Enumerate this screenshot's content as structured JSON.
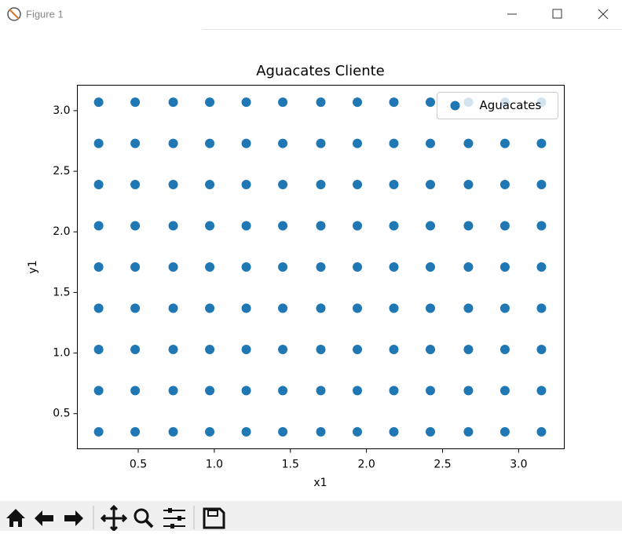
{
  "window": {
    "title": "Figure 1"
  },
  "chart_data": {
    "type": "scatter",
    "title": "Aguacates Cliente",
    "x_label": "x1",
    "y_label": "y1",
    "series": [
      {
        "name": "Aguacates",
        "color": "#1f77b4",
        "x": [
          0.24,
          0.24,
          0.24,
          0.24,
          0.24,
          0.24,
          0.24,
          0.24,
          0.24,
          0.48,
          0.48,
          0.48,
          0.48,
          0.48,
          0.48,
          0.48,
          0.48,
          0.48,
          0.73,
          0.73,
          0.73,
          0.73,
          0.73,
          0.73,
          0.73,
          0.73,
          0.73,
          0.97,
          0.97,
          0.97,
          0.97,
          0.97,
          0.97,
          0.97,
          0.97,
          0.97,
          1.21,
          1.21,
          1.21,
          1.21,
          1.21,
          1.21,
          1.21,
          1.21,
          1.21,
          1.45,
          1.45,
          1.45,
          1.45,
          1.45,
          1.45,
          1.45,
          1.45,
          1.45,
          1.7,
          1.7,
          1.7,
          1.7,
          1.7,
          1.7,
          1.7,
          1.7,
          1.7,
          1.94,
          1.94,
          1.94,
          1.94,
          1.94,
          1.94,
          1.94,
          1.94,
          1.94,
          2.18,
          2.18,
          2.18,
          2.18,
          2.18,
          2.18,
          2.18,
          2.18,
          2.18,
          2.42,
          2.42,
          2.42,
          2.42,
          2.42,
          2.42,
          2.42,
          2.42,
          2.42,
          2.67,
          2.67,
          2.67,
          2.67,
          2.67,
          2.67,
          2.67,
          2.67,
          2.67,
          2.91,
          2.91,
          2.91,
          2.91,
          2.91,
          2.91,
          2.91,
          2.91,
          2.91,
          3.15,
          3.15,
          3.15,
          3.15,
          3.15,
          3.15,
          3.15,
          3.15,
          3.15
        ],
        "values": [
          0.35,
          0.69,
          1.03,
          1.37,
          1.71,
          2.05,
          2.39,
          2.73,
          3.07,
          0.35,
          0.69,
          1.03,
          1.37,
          1.71,
          2.05,
          2.39,
          2.73,
          3.07,
          0.35,
          0.69,
          1.03,
          1.37,
          1.71,
          2.05,
          2.39,
          2.73,
          3.07,
          0.35,
          0.69,
          1.03,
          1.37,
          1.71,
          2.05,
          2.39,
          2.73,
          3.07,
          0.35,
          0.69,
          1.03,
          1.37,
          1.71,
          2.05,
          2.39,
          2.73,
          3.07,
          0.35,
          0.69,
          1.03,
          1.37,
          1.71,
          2.05,
          2.39,
          2.73,
          3.07,
          0.35,
          0.69,
          1.03,
          1.37,
          1.71,
          2.05,
          2.39,
          2.73,
          3.07,
          0.35,
          0.69,
          1.03,
          1.37,
          1.71,
          2.05,
          2.39,
          2.73,
          3.07,
          0.35,
          0.69,
          1.03,
          1.37,
          1.71,
          2.05,
          2.39,
          2.73,
          3.07,
          0.35,
          0.69,
          1.03,
          1.37,
          1.71,
          2.05,
          2.39,
          2.73,
          3.07,
          0.35,
          0.69,
          1.03,
          1.37,
          1.71,
          2.05,
          2.39,
          2.73,
          3.07,
          0.35,
          0.69,
          1.03,
          1.37,
          1.71,
          2.05,
          2.39,
          2.73,
          3.07,
          0.35,
          0.69,
          1.03,
          1.37,
          1.71,
          2.05,
          2.39,
          2.73,
          3.07
        ]
      }
    ],
    "xlim": [
      0.1,
      3.3
    ],
    "ylim": [
      0.21,
      3.21
    ],
    "xticks": [
      0.5,
      {
        "value": 1,
        "label": "1.0"
      },
      1.5,
      {
        "value": 2,
        "label": "2.0"
      },
      2.5,
      {
        "value": 3,
        "label": "3.0"
      }
    ],
    "yticks": [
      0.5,
      {
        "value": 1,
        "label": "1.0"
      },
      1.5,
      {
        "value": 2,
        "label": "2.0"
      },
      2.5,
      {
        "value": 3,
        "label": "3.0"
      }
    ],
    "grid": false,
    "legend": "upper right"
  }
}
